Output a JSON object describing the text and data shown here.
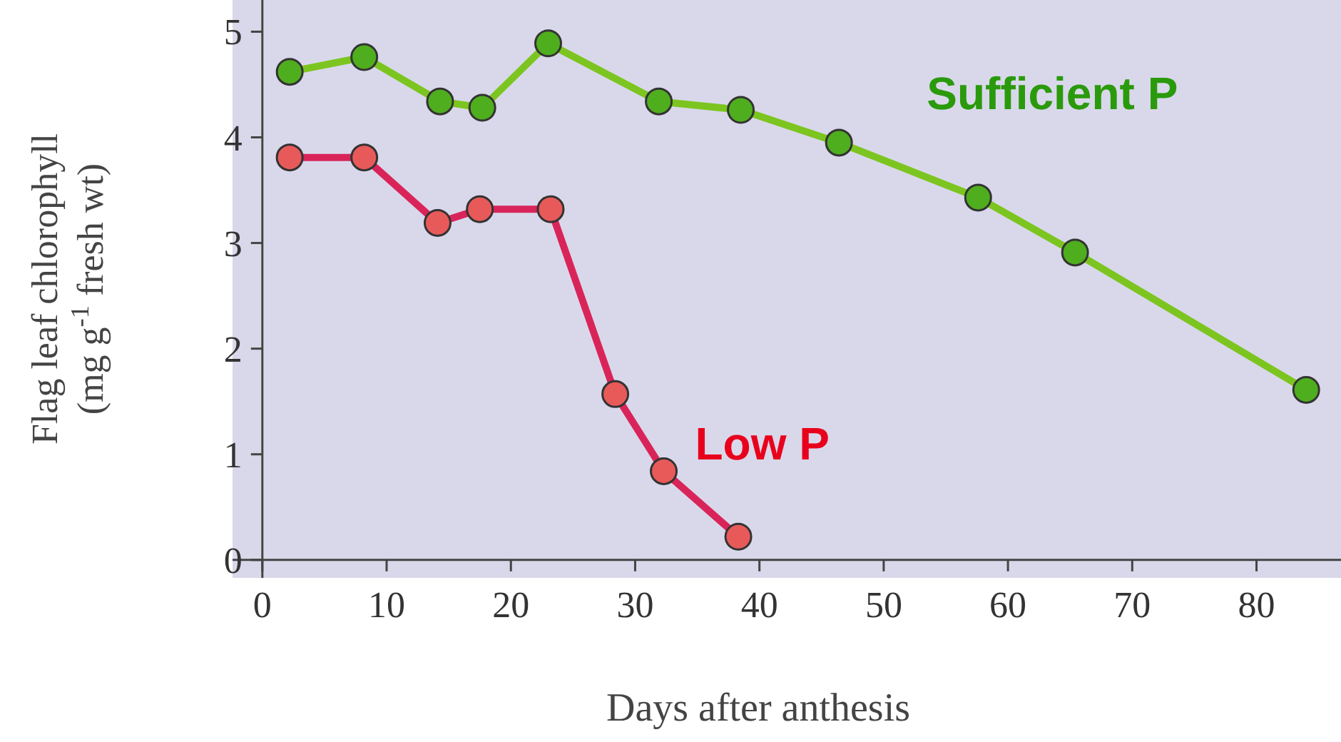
{
  "chart_data": {
    "type": "line",
    "xlabel": "Days after anthesis",
    "ylabel": "Flag leaf chlorophyll (mg g$^{-1}$ fresh wt)",
    "xlim": [
      -2.4,
      86.8
    ],
    "ylim": [
      -0.17,
      5.3
    ],
    "xticks": [
      0,
      10,
      20,
      30,
      40,
      50,
      60,
      70,
      80
    ],
    "yticks": [
      0,
      1,
      2,
      3,
      4,
      5
    ],
    "marker": "circle",
    "line_style": "solid",
    "series": [
      {
        "name": "Sufficient P",
        "color": "#7cc520",
        "x": [
          2.2,
          8.2,
          14.3,
          17.7,
          23,
          31.9,
          38.5,
          46.4,
          57.6,
          65.4,
          84
        ],
        "values": [
          4.62,
          4.76,
          4.34,
          4.28,
          4.89,
          4.34,
          4.26,
          3.95,
          3.43,
          2.91,
          1.61
        ]
      },
      {
        "name": "Low P",
        "color": "#d9245a",
        "x": [
          2.2,
          8.2,
          14.1,
          17.5,
          23.2,
          28.4,
          32.3,
          38.3
        ],
        "values": [
          3.81,
          3.81,
          3.19,
          3.32,
          3.32,
          1.57,
          0.84,
          0.22
        ]
      }
    ]
  }
}
